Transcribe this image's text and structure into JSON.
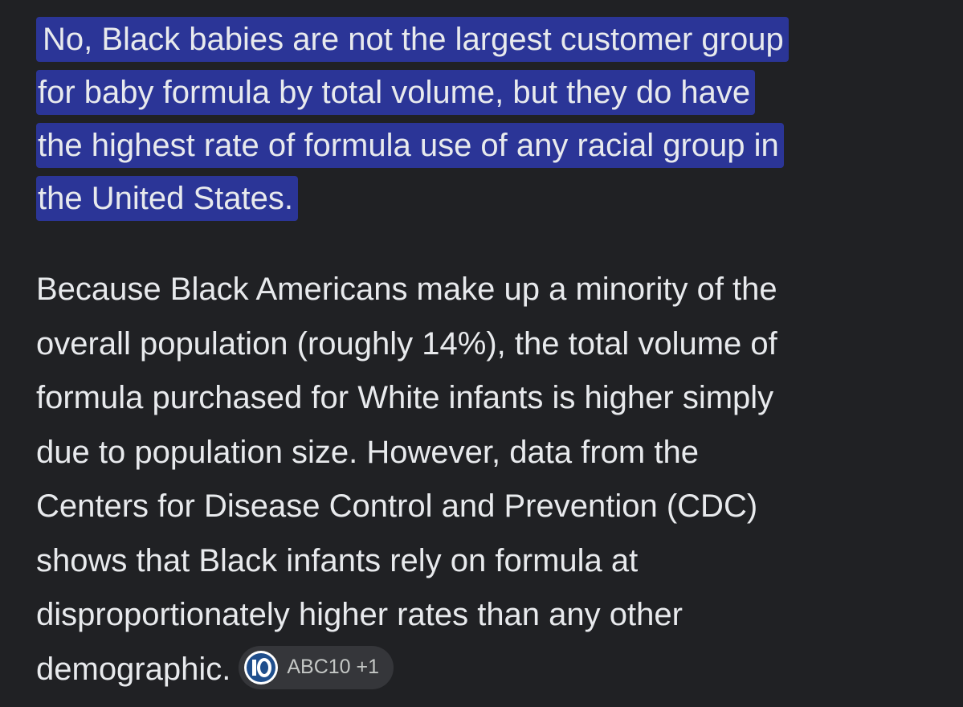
{
  "answer": {
    "highlight_lines": [
      "No, Black babies are not the largest customer group",
      "for baby formula by total volume, but they do have",
      "the highest rate of formula use of any racial group in",
      "the United States."
    ],
    "body_lines": [
      "Because Black Americans make up a minority of the",
      "overall population (roughly 14%), the total volume of",
      "formula purchased for White infants is higher simply",
      "due to population size. However, data from the",
      "Centers for Disease Control and Prevention (CDC)",
      "shows that Black infants rely on formula at",
      "disproportionately higher rates than any other",
      "demographic."
    ],
    "source_chip": "ABC10 +1"
  }
}
